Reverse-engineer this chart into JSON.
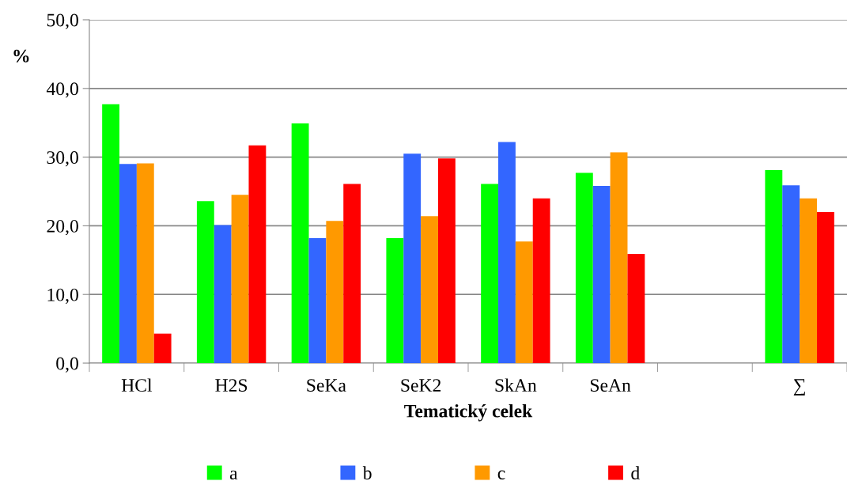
{
  "chart_data": {
    "type": "bar",
    "xlabel": "Tematický celek",
    "ylabel": "%",
    "categories": [
      "HCl",
      "H2S",
      "SeKa",
      "SeK2",
      "SkAn",
      "SeAn",
      null,
      "∑"
    ],
    "series": [
      {
        "name": "a",
        "color": "#00ff00",
        "values": [
          37.7,
          23.6,
          34.9,
          18.2,
          26.1,
          27.7,
          null,
          28.1
        ]
      },
      {
        "name": "b",
        "color": "#3366ff",
        "values": [
          29.0,
          20.1,
          18.2,
          30.5,
          32.2,
          25.8,
          null,
          25.9
        ]
      },
      {
        "name": "c",
        "color": "#ff9900",
        "values": [
          29.1,
          24.5,
          20.7,
          21.4,
          17.7,
          30.7,
          null,
          24.0
        ]
      },
      {
        "name": "d",
        "color": "#ff0000",
        "values": [
          4.3,
          31.7,
          26.1,
          29.8,
          24.0,
          15.9,
          null,
          22.0
        ]
      }
    ],
    "ylim": [
      0,
      50
    ],
    "yticks": [
      {
        "value": 0,
        "label": "0,0"
      },
      {
        "value": 10,
        "label": "10,0"
      },
      {
        "value": 20,
        "label": "20,0"
      },
      {
        "value": 30,
        "label": "30,0"
      },
      {
        "value": 40,
        "label": "40,0"
      },
      {
        "value": 50,
        "label": "50,0"
      }
    ],
    "grid": "y",
    "legend": "bottom"
  }
}
